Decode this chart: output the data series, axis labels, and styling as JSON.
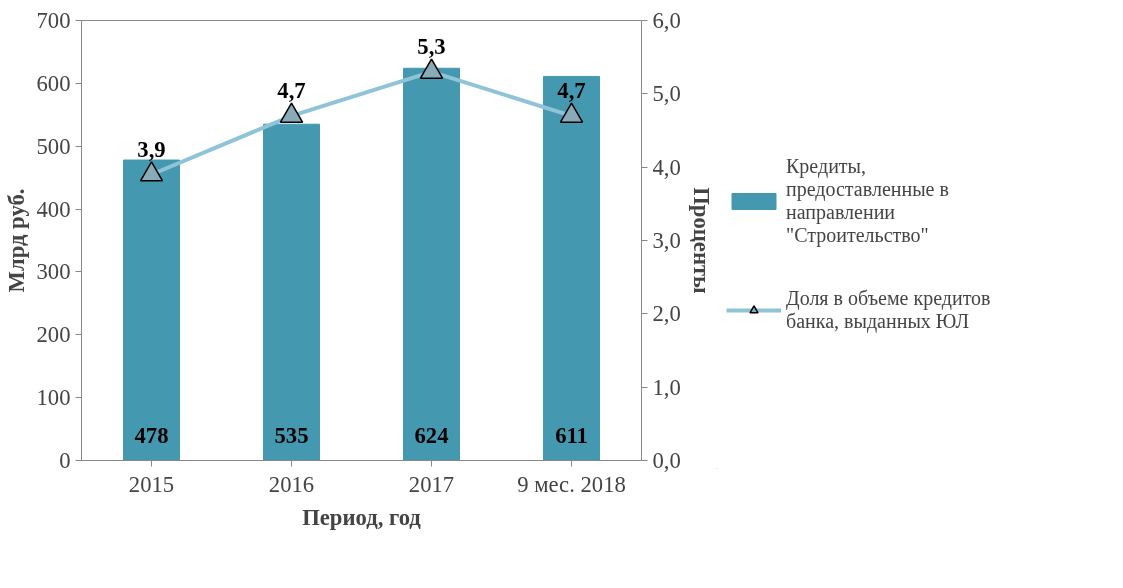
{
  "chart_data": {
    "type": "bar",
    "xlabel": "Период, год",
    "ylabel": "Млрд руб.",
    "y2label": "Проценты",
    "categories": [
      "2015",
      "2016",
      "2017",
      "9 мес. 2018"
    ],
    "series": [
      {
        "name": "Кредиты, предоставленные в направлении \"Строительство\"",
        "color": "#4499b0",
        "values": [
          478,
          535,
          624,
          611
        ],
        "value_labels": [
          "478",
          "535",
          "624",
          "611"
        ]
      },
      {
        "name": "Доля в объеме кредитов банка, выданных ЮЛ",
        "type": "line",
        "axis": "y2",
        "color": "#8fc3d8",
        "marker": "triangle",
        "values": [
          3.9,
          4.7,
          5.3,
          4.7
        ],
        "value_labels": [
          "3,9",
          "4,7",
          "5,3",
          "4,7"
        ]
      }
    ],
    "ylim": [
      0,
      700
    ],
    "yticks": [
      0,
      100,
      200,
      300,
      400,
      500,
      600,
      700
    ],
    "y2lim": [
      0,
      6
    ],
    "y2ticks": [
      {
        "value": 0,
        "label": "0,0"
      },
      {
        "value": 1,
        "label": "1,0"
      },
      {
        "value": 2,
        "label": "2,0"
      },
      {
        "value": 3,
        "label": "3,0"
      },
      {
        "value": 4,
        "label": "4,0"
      },
      {
        "value": 5,
        "label": "5,0"
      },
      {
        "value": 6,
        "label": "6,0"
      }
    ],
    "grid": false,
    "legend": "right"
  }
}
